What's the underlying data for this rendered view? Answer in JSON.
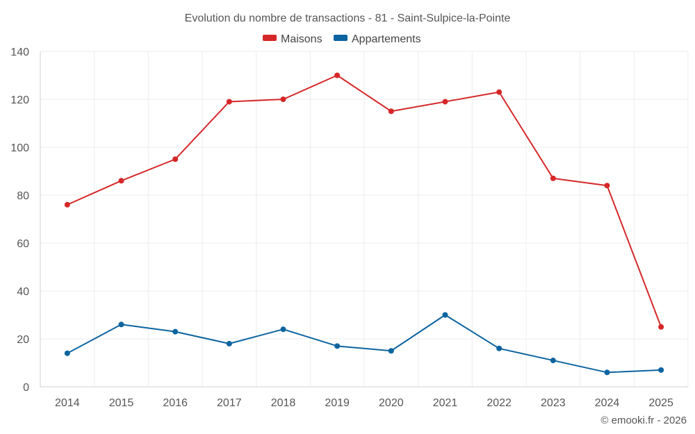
{
  "chart_data": {
    "type": "line",
    "title": "Evolution du nombre de transactions - 81 - Saint-Sulpice-la-Pointe",
    "categories": [
      "2014",
      "2015",
      "2016",
      "2017",
      "2018",
      "2019",
      "2020",
      "2021",
      "2022",
      "2023",
      "2024",
      "2025"
    ],
    "series": [
      {
        "name": "Maisons",
        "color": "#d62728",
        "values": [
          76,
          86,
          95,
          119,
          120,
          130,
          115,
          119,
          123,
          87,
          84,
          25
        ]
      },
      {
        "name": "Appartements",
        "color": "#0b64a0",
        "values": [
          14,
          26,
          23,
          18,
          24,
          17,
          15,
          30,
          16,
          11,
          6,
          7
        ]
      }
    ],
    "ylim": [
      0,
      140
    ],
    "yticks": [
      0,
      20,
      40,
      60,
      80,
      100,
      120,
      140
    ],
    "grid": true,
    "legend_position": "top-center",
    "xlabel": "",
    "ylabel": ""
  },
  "credit": "© emooki.fr - 2026"
}
